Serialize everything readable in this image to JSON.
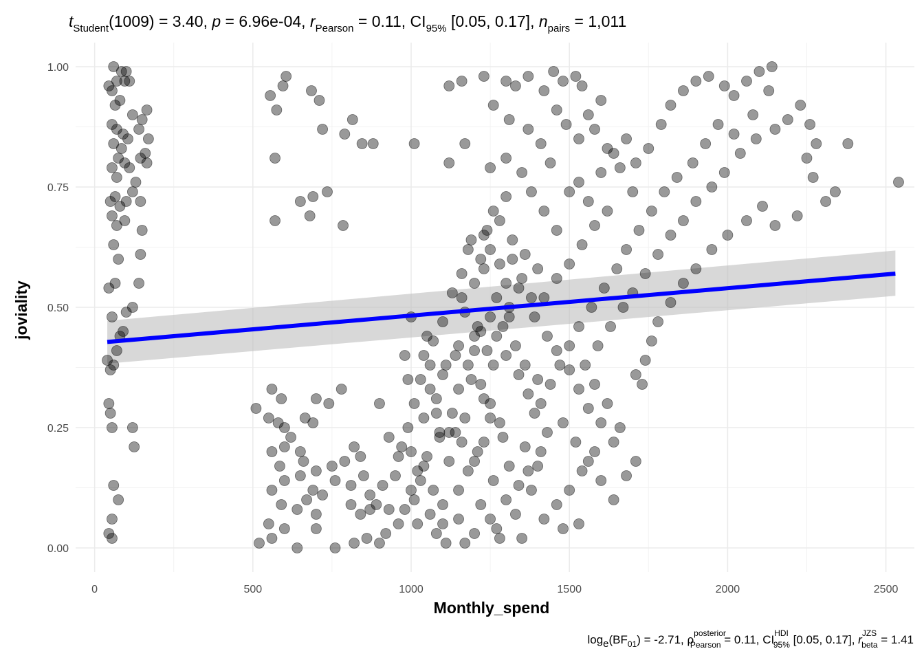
{
  "subtitle": {
    "t_symbol": "t",
    "t_sub": "Student",
    "t_df": "(1009)",
    "t_val": " = 3.40, ",
    "p_symbol": "p",
    "p_val": " = 6.96e-04, ",
    "r_symbol": "r",
    "r_sub": "Pearson",
    "r_val": " = 0.11, CI",
    "ci_sub": "95%",
    "ci_val": " [0.05, 0.17], ",
    "n_symbol": "n",
    "n_sub": "pairs",
    "n_val": " = 1,011"
  },
  "caption": {
    "log_text": "log",
    "log_sub": "e",
    "bf_text": "(BF",
    "bf_sub": "01",
    "bf_val": ") = -2.71, ",
    "rho_symbol": "ρ",
    "rho_sup": "posterior",
    "rho_sub": "Pearson",
    "rho_val": " = 0.11, CI",
    "hdi_sup": "HDI",
    "hdi_sub": "95%",
    "hdi_val": " [0.05, 0.17], ",
    "rbeta_symbol": "r",
    "rbeta_sup": "JZS",
    "rbeta_sub": "beta",
    "rbeta_val": " = 1.41"
  },
  "chart_data": {
    "type": "scatter",
    "xlabel": "Monthly_spend",
    "ylabel": "joviality",
    "xlim": [
      -60,
      2590
    ],
    "ylim": [
      -0.05,
      1.05
    ],
    "x_ticks": [
      0,
      500,
      1000,
      1500,
      2000,
      2500
    ],
    "x_tick_labels": [
      "0",
      "500",
      "1000",
      "1500",
      "2000",
      "2500"
    ],
    "y_ticks": [
      0,
      0.25,
      0.5,
      0.75,
      1.0
    ],
    "y_tick_labels": [
      "0.00",
      "0.25",
      "0.50",
      "0.75",
      "1.00"
    ],
    "grid": true,
    "point_color": "#000000",
    "point_opacity": 0.4,
    "regression_line": {
      "x": [
        40,
        2530
      ],
      "y": [
        0.428,
        0.57
      ],
      "color": "#0000ff",
      "ci_lower": [
        0.383,
        0.524
      ],
      "ci_upper": [
        0.472,
        0.618
      ],
      "ci_color": "#bebebe"
    },
    "points": [
      [
        60,
        1.0
      ],
      [
        85,
        0.99
      ],
      [
        45,
        0.96
      ],
      [
        70,
        0.97
      ],
      [
        100,
        0.99
      ],
      [
        95,
        0.97
      ],
      [
        55,
        0.95
      ],
      [
        80,
        0.93
      ],
      [
        110,
        0.97
      ],
      [
        65,
        0.92
      ],
      [
        120,
        0.9
      ],
      [
        150,
        0.89
      ],
      [
        165,
        0.91
      ],
      [
        55,
        0.88
      ],
      [
        70,
        0.87
      ],
      [
        90,
        0.86
      ],
      [
        105,
        0.85
      ],
      [
        60,
        0.84
      ],
      [
        85,
        0.83
      ],
      [
        170,
        0.85
      ],
      [
        140,
        0.87
      ],
      [
        75,
        0.81
      ],
      [
        95,
        0.8
      ],
      [
        55,
        0.79
      ],
      [
        110,
        0.79
      ],
      [
        145,
        0.81
      ],
      [
        160,
        0.82
      ],
      [
        70,
        0.77
      ],
      [
        130,
        0.76
      ],
      [
        165,
        0.8
      ],
      [
        50,
        0.72
      ],
      [
        65,
        0.73
      ],
      [
        80,
        0.71
      ],
      [
        100,
        0.72
      ],
      [
        120,
        0.74
      ],
      [
        145,
        0.72
      ],
      [
        55,
        0.69
      ],
      [
        70,
        0.67
      ],
      [
        95,
        0.68
      ],
      [
        150,
        0.66
      ],
      [
        60,
        0.63
      ],
      [
        75,
        0.6
      ],
      [
        145,
        0.61
      ],
      [
        65,
        0.55
      ],
      [
        140,
        0.55
      ],
      [
        45,
        0.54
      ],
      [
        120,
        0.5
      ],
      [
        100,
        0.49
      ],
      [
        55,
        0.48
      ],
      [
        40,
        0.39
      ],
      [
        70,
        0.41
      ],
      [
        80,
        0.44
      ],
      [
        60,
        0.38
      ],
      [
        50,
        0.37
      ],
      [
        90,
        0.45
      ],
      [
        45,
        0.3
      ],
      [
        50,
        0.28
      ],
      [
        55,
        0.25
      ],
      [
        120,
        0.25
      ],
      [
        125,
        0.21
      ],
      [
        60,
        0.13
      ],
      [
        75,
        0.1
      ],
      [
        55,
        0.06
      ],
      [
        45,
        0.03
      ],
      [
        55,
        0.02
      ],
      [
        555,
        0.94
      ],
      [
        595,
        0.96
      ],
      [
        605,
        0.98
      ],
      [
        575,
        0.91
      ],
      [
        685,
        0.95
      ],
      [
        710,
        0.93
      ],
      [
        720,
        0.87
      ],
      [
        815,
        0.89
      ],
      [
        790,
        0.86
      ],
      [
        845,
        0.84
      ],
      [
        880,
        0.84
      ],
      [
        570,
        0.81
      ],
      [
        650,
        0.72
      ],
      [
        690,
        0.73
      ],
      [
        735,
        0.74
      ],
      [
        680,
        0.69
      ],
      [
        570,
        0.68
      ],
      [
        785,
        0.67
      ],
      [
        1010,
        0.84
      ],
      [
        510,
        0.29
      ],
      [
        560,
        0.33
      ],
      [
        590,
        0.31
      ],
      [
        550,
        0.27
      ],
      [
        580,
        0.26
      ],
      [
        600,
        0.25
      ],
      [
        665,
        0.27
      ],
      [
        690,
        0.26
      ],
      [
        700,
        0.31
      ],
      [
        740,
        0.3
      ],
      [
        780,
        0.33
      ],
      [
        560,
        0.2
      ],
      [
        600,
        0.21
      ],
      [
        620,
        0.23
      ],
      [
        650,
        0.2
      ],
      [
        585,
        0.17
      ],
      [
        660,
        0.18
      ],
      [
        700,
        0.16
      ],
      [
        750,
        0.17
      ],
      [
        790,
        0.18
      ],
      [
        820,
        0.21
      ],
      [
        840,
        0.19
      ],
      [
        560,
        0.12
      ],
      [
        600,
        0.14
      ],
      [
        650,
        0.15
      ],
      [
        690,
        0.12
      ],
      [
        720,
        0.11
      ],
      [
        760,
        0.14
      ],
      [
        810,
        0.13
      ],
      [
        850,
        0.15
      ],
      [
        870,
        0.11
      ],
      [
        590,
        0.09
      ],
      [
        640,
        0.08
      ],
      [
        670,
        0.1
      ],
      [
        700,
        0.07
      ],
      [
        810,
        0.09
      ],
      [
        840,
        0.07
      ],
      [
        870,
        0.08
      ],
      [
        890,
        0.09
      ],
      [
        550,
        0.05
      ],
      [
        520,
        0.01
      ],
      [
        560,
        0.02
      ],
      [
        600,
        0.04
      ],
      [
        640,
        0.0
      ],
      [
        700,
        0.04
      ],
      [
        760,
        0.0
      ],
      [
        820,
        0.01
      ],
      [
        860,
        0.02
      ],
      [
        900,
        0.01
      ],
      [
        920,
        0.03
      ],
      [
        900,
        0.3
      ],
      [
        930,
        0.23
      ],
      [
        960,
        0.19
      ],
      [
        950,
        0.15
      ],
      [
        910,
        0.13
      ],
      [
        930,
        0.08
      ],
      [
        1000,
        0.48
      ],
      [
        980,
        0.4
      ],
      [
        990,
        0.35
      ],
      [
        1050,
        0.44
      ],
      [
        1100,
        0.47
      ],
      [
        1010,
        0.3
      ],
      [
        1060,
        0.33
      ],
      [
        1080,
        0.28
      ],
      [
        1120,
        0.24
      ],
      [
        1000,
        0.2
      ],
      [
        1040,
        0.17
      ],
      [
        1070,
        0.12
      ],
      [
        1100,
        0.09
      ],
      [
        1020,
        0.05
      ],
      [
        1080,
        0.03
      ],
      [
        1110,
        0.01
      ],
      [
        1150,
        0.06
      ],
      [
        1120,
        0.18
      ],
      [
        1160,
        0.22
      ],
      [
        1090,
        0.24
      ],
      [
        1140,
        0.4
      ],
      [
        1200,
        0.44
      ],
      [
        1160,
        0.52
      ],
      [
        1200,
        0.55
      ],
      [
        1230,
        0.58
      ],
      [
        1180,
        0.62
      ],
      [
        1240,
        0.66
      ],
      [
        1260,
        0.7
      ],
      [
        1300,
        0.73
      ],
      [
        1280,
        0.68
      ],
      [
        1320,
        0.6
      ],
      [
        1350,
        0.56
      ],
      [
        1380,
        0.52
      ],
      [
        1310,
        0.48
      ],
      [
        1270,
        0.44
      ],
      [
        1300,
        0.4
      ],
      [
        1340,
        0.36
      ],
      [
        1370,
        0.32
      ],
      [
        1250,
        0.3
      ],
      [
        1280,
        0.26
      ],
      [
        1230,
        0.22
      ],
      [
        1200,
        0.18
      ],
      [
        1260,
        0.14
      ],
      [
        1300,
        0.1
      ],
      [
        1330,
        0.07
      ],
      [
        1270,
        0.04
      ],
      [
        1350,
        0.02
      ],
      [
        1380,
        0.12
      ],
      [
        1400,
        0.17
      ],
      [
        1360,
        0.21
      ],
      [
        1120,
        0.96
      ],
      [
        1160,
        0.97
      ],
      [
        1230,
        0.98
      ],
      [
        1300,
        0.97
      ],
      [
        1330,
        0.96
      ],
      [
        1370,
        0.98
      ],
      [
        1420,
        0.95
      ],
      [
        1450,
        0.99
      ],
      [
        1480,
        0.97
      ],
      [
        1520,
        0.98
      ],
      [
        1540,
        0.96
      ],
      [
        1260,
        0.92
      ],
      [
        1310,
        0.89
      ],
      [
        1370,
        0.87
      ],
      [
        1410,
        0.84
      ],
      [
        1440,
        0.8
      ],
      [
        1170,
        0.84
      ],
      [
        1120,
        0.8
      ],
      [
        1250,
        0.79
      ],
      [
        1300,
        0.81
      ],
      [
        1350,
        0.78
      ],
      [
        1380,
        0.74
      ],
      [
        1420,
        0.7
      ],
      [
        1460,
        0.66
      ],
      [
        1500,
        0.74
      ],
      [
        1530,
        0.76
      ],
      [
        1560,
        0.72
      ],
      [
        1600,
        0.78
      ],
      [
        1640,
        0.82
      ],
      [
        1680,
        0.85
      ],
      [
        1710,
        0.8
      ],
      [
        1750,
        0.83
      ],
      [
        1790,
        0.88
      ],
      [
        1820,
        0.92
      ],
      [
        1860,
        0.95
      ],
      [
        1900,
        0.97
      ],
      [
        1940,
        0.98
      ],
      [
        1990,
        0.96
      ],
      [
        2020,
        0.94
      ],
      [
        2060,
        0.97
      ],
      [
        2100,
        0.99
      ],
      [
        2140,
        1.0
      ],
      [
        2130,
        0.95
      ],
      [
        2080,
        0.9
      ],
      [
        2020,
        0.86
      ],
      [
        1970,
        0.88
      ],
      [
        1930,
        0.84
      ],
      [
        1890,
        0.8
      ],
      [
        1840,
        0.77
      ],
      [
        1800,
        0.74
      ],
      [
        1760,
        0.7
      ],
      [
        1720,
        0.66
      ],
      [
        1680,
        0.62
      ],
      [
        1650,
        0.58
      ],
      [
        1610,
        0.54
      ],
      [
        1570,
        0.5
      ],
      [
        1530,
        0.46
      ],
      [
        1500,
        0.42
      ],
      [
        1470,
        0.38
      ],
      [
        1440,
        0.34
      ],
      [
        1410,
        0.3
      ],
      [
        1480,
        0.26
      ],
      [
        1520,
        0.22
      ],
      [
        1560,
        0.18
      ],
      [
        1600,
        0.14
      ],
      [
        1640,
        0.1
      ],
      [
        1680,
        0.15
      ],
      [
        1710,
        0.18
      ],
      [
        1660,
        0.25
      ],
      [
        1620,
        0.3
      ],
      [
        1580,
        0.34
      ],
      [
        1550,
        0.38
      ],
      [
        1590,
        0.42
      ],
      [
        1630,
        0.46
      ],
      [
        1670,
        0.5
      ],
      [
        1700,
        0.53
      ],
      [
        1740,
        0.57
      ],
      [
        1780,
        0.61
      ],
      [
        1820,
        0.65
      ],
      [
        1860,
        0.68
      ],
      [
        1900,
        0.72
      ],
      [
        1950,
        0.75
      ],
      [
        1990,
        0.78
      ],
      [
        2040,
        0.82
      ],
      [
        2090,
        0.85
      ],
      [
        2150,
        0.87
      ],
      [
        2190,
        0.89
      ],
      [
        2230,
        0.92
      ],
      [
        2260,
        0.88
      ],
      [
        2280,
        0.84
      ],
      [
        2250,
        0.81
      ],
      [
        2270,
        0.77
      ],
      [
        2310,
        0.72
      ],
      [
        2340,
        0.74
      ],
      [
        2380,
        0.84
      ],
      [
        2540,
        0.76
      ],
      [
        2220,
        0.69
      ],
      [
        2150,
        0.67
      ],
      [
        2110,
        0.71
      ],
      [
        2060,
        0.68
      ],
      [
        2000,
        0.65
      ],
      [
        1950,
        0.62
      ],
      [
        1900,
        0.58
      ],
      [
        1860,
        0.55
      ],
      [
        1820,
        0.51
      ],
      [
        1780,
        0.47
      ],
      [
        1760,
        0.43
      ],
      [
        1740,
        0.39
      ],
      [
        1710,
        0.36
      ],
      [
        1730,
        0.34
      ],
      [
        1460,
        0.91
      ],
      [
        1490,
        0.88
      ],
      [
        1530,
        0.85
      ],
      [
        1560,
        0.9
      ],
      [
        1600,
        0.93
      ],
      [
        1580,
        0.87
      ],
      [
        1620,
        0.83
      ],
      [
        1660,
        0.79
      ],
      [
        1700,
        0.74
      ],
      [
        1620,
        0.7
      ],
      [
        1580,
        0.67
      ],
      [
        1540,
        0.63
      ],
      [
        1500,
        0.59
      ],
      [
        1460,
        0.56
      ],
      [
        1420,
        0.52
      ],
      [
        1390,
        0.48
      ],
      [
        1430,
        0.44
      ],
      [
        1460,
        0.41
      ],
      [
        1500,
        0.37
      ],
      [
        1530,
        0.33
      ],
      [
        1560,
        0.29
      ],
      [
        1600,
        0.26
      ],
      [
        1640,
        0.22
      ],
      [
        1580,
        0.2
      ],
      [
        1540,
        0.16
      ],
      [
        1500,
        0.12
      ],
      [
        1460,
        0.09
      ],
      [
        1420,
        0.06
      ],
      [
        1480,
        0.04
      ],
      [
        1530,
        0.05
      ],
      [
        1190,
        0.64
      ],
      [
        1220,
        0.6
      ],
      [
        1160,
        0.57
      ],
      [
        1130,
        0.53
      ],
      [
        1170,
        0.49
      ],
      [
        1210,
        0.46
      ],
      [
        1150,
        0.42
      ],
      [
        1110,
        0.38
      ],
      [
        1190,
        0.35
      ],
      [
        1230,
        0.31
      ],
      [
        1170,
        0.27
      ],
      [
        1140,
        0.24
      ],
      [
        1210,
        0.2
      ],
      [
        1180,
        0.16
      ],
      [
        1150,
        0.12
      ],
      [
        1220,
        0.09
      ],
      [
        1250,
        0.06
      ],
      [
        1200,
        0.03
      ],
      [
        1170,
        0.01
      ],
      [
        1280,
        0.02
      ],
      [
        1320,
        0.64
      ],
      [
        1360,
        0.61
      ],
      [
        1400,
        0.58
      ],
      [
        1340,
        0.54
      ],
      [
        1310,
        0.5
      ],
      [
        1290,
        0.46
      ],
      [
        1330,
        0.42
      ],
      [
        1360,
        0.38
      ],
      [
        1400,
        0.35
      ],
      [
        1390,
        0.28
      ],
      [
        1430,
        0.24
      ],
      [
        1410,
        0.2
      ],
      [
        1370,
        0.16
      ],
      [
        1340,
        0.13
      ],
      [
        1310,
        0.17
      ],
      [
        1290,
        0.23
      ],
      [
        1250,
        0.27
      ],
      [
        1220,
        0.34
      ],
      [
        1260,
        0.38
      ],
      [
        1240,
        0.41
      ],
      [
        1060,
        0.38
      ],
      [
        1030,
        0.35
      ],
      [
        1080,
        0.31
      ],
      [
        1040,
        0.27
      ],
      [
        1090,
        0.23
      ],
      [
        1050,
        0.19
      ],
      [
        1030,
        0.14
      ],
      [
        1010,
        0.1
      ],
      [
        1060,
        0.07
      ],
      [
        1100,
        0.05
      ],
      [
        990,
        0.25
      ],
      [
        970,
        0.21
      ],
      [
        1020,
        0.16
      ],
      [
        1000,
        0.12
      ],
      [
        980,
        0.08
      ],
      [
        960,
        0.05
      ],
      [
        1040,
        0.4
      ],
      [
        1070,
        0.43
      ],
      [
        1100,
        0.36
      ],
      [
        1130,
        0.28
      ],
      [
        1150,
        0.33
      ],
      [
        1180,
        0.38
      ],
      [
        1200,
        0.41
      ],
      [
        1220,
        0.45
      ],
      [
        1250,
        0.48
      ],
      [
        1270,
        0.52
      ],
      [
        1300,
        0.55
      ],
      [
        1280,
        0.59
      ],
      [
        1250,
        0.62
      ],
      [
        1230,
        0.65
      ]
    ]
  }
}
